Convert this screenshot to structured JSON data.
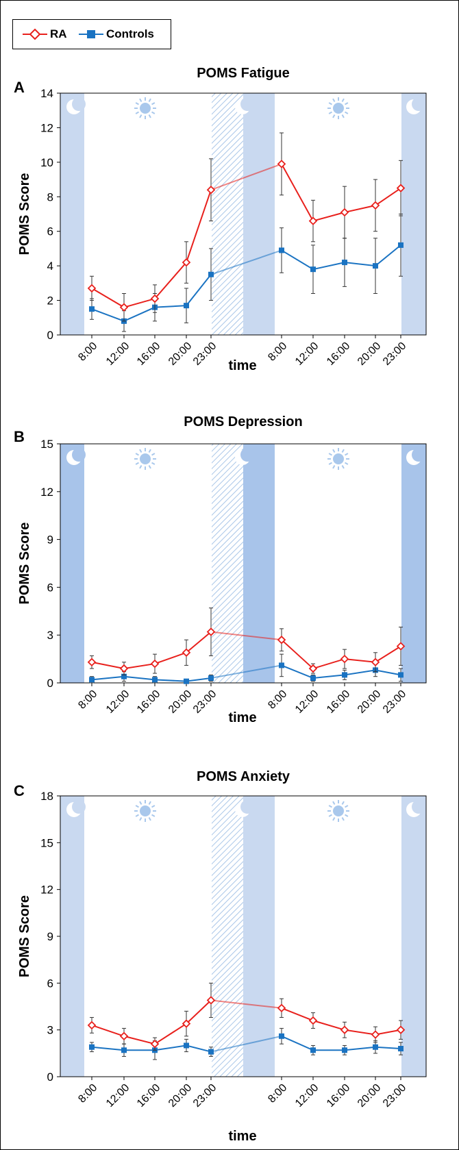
{
  "legend": {
    "ra_label": "RA",
    "controls_label": "Controls"
  },
  "colors": {
    "ra": "#e8201c",
    "controls": "#1a73c2",
    "night_band": "#c9d9f0",
    "night_band_dark": "#a8c4ea",
    "hatch": "#a9c6e8",
    "moon": "#ffffff",
    "sun": "#a9c8ec"
  },
  "chart_data": [
    {
      "panel_letter": "A",
      "type": "line",
      "title": "POMS Fatigue",
      "xlabel": "time",
      "ylabel": "POMS Score",
      "ylim": [
        0,
        14
      ],
      "yticks": [
        0,
        2,
        4,
        6,
        8,
        10,
        12,
        14
      ],
      "categories": [
        "8:00",
        "12:00",
        "16:00",
        "20:00",
        "23:00",
        "8:00",
        "12:00",
        "16:00",
        "20:00",
        "23:00"
      ],
      "legend_position": "top-left",
      "series": [
        {
          "name": "RA",
          "values": [
            2.7,
            1.6,
            2.1,
            4.2,
            8.4,
            9.9,
            6.6,
            7.1,
            7.5,
            8.5
          ],
          "error": [
            0.7,
            0.8,
            0.8,
            1.2,
            1.8,
            1.8,
            1.2,
            1.5,
            1.5,
            1.6
          ]
        },
        {
          "name": "Controls",
          "values": [
            1.5,
            0.8,
            1.6,
            1.7,
            3.5,
            4.9,
            3.8,
            4.2,
            4.0,
            5.2
          ],
          "error": [
            0.6,
            0.6,
            0.8,
            1.0,
            1.5,
            1.3,
            1.4,
            1.4,
            1.6,
            1.8
          ]
        }
      ]
    },
    {
      "panel_letter": "B",
      "type": "line",
      "title": "POMS Depression",
      "xlabel": "time",
      "ylabel": "POMS Score",
      "ylim": [
        0,
        15
      ],
      "yticks": [
        0,
        3,
        6,
        9,
        12,
        15
      ],
      "categories": [
        "8:00",
        "12:00",
        "16:00",
        "20:00",
        "23:00",
        "8:00",
        "12:00",
        "16:00",
        "20:00",
        "23:00"
      ],
      "series": [
        {
          "name": "RA",
          "values": [
            1.3,
            0.9,
            1.2,
            1.9,
            3.2,
            2.7,
            0.9,
            1.5,
            1.3,
            2.3
          ],
          "error": [
            0.4,
            0.4,
            0.6,
            0.8,
            1.5,
            0.7,
            0.3,
            0.6,
            0.6,
            1.2
          ]
        },
        {
          "name": "Controls",
          "values": [
            0.2,
            0.4,
            0.2,
            0.1,
            0.3,
            1.1,
            0.3,
            0.5,
            0.8,
            0.5
          ],
          "error": [
            0.2,
            0.3,
            0.2,
            0.1,
            0.2,
            0.7,
            0.2,
            0.3,
            0.4,
            0.4
          ]
        }
      ]
    },
    {
      "panel_letter": "C",
      "type": "line",
      "title": "POMS Anxiety",
      "xlabel": "time",
      "ylabel": "POMS Score",
      "ylim": [
        0,
        18
      ],
      "yticks": [
        0,
        3,
        6,
        9,
        12,
        15,
        18
      ],
      "categories": [
        "8:00",
        "12:00",
        "16:00",
        "20:00",
        "23:00",
        "8:00",
        "12:00",
        "16:00",
        "20:00",
        "23:00"
      ],
      "series": [
        {
          "name": "RA",
          "values": [
            3.3,
            2.6,
            2.1,
            3.4,
            4.9,
            4.4,
            3.6,
            3.0,
            2.7,
            3.0
          ],
          "error": [
            0.5,
            0.5,
            0.4,
            0.8,
            1.1,
            0.6,
            0.5,
            0.5,
            0.5,
            0.6
          ]
        },
        {
          "name": "Controls",
          "values": [
            1.9,
            1.7,
            1.7,
            2.0,
            1.6,
            2.6,
            1.7,
            1.7,
            1.9,
            1.8
          ],
          "error": [
            0.3,
            0.4,
            0.6,
            0.4,
            0.3,
            0.5,
            0.3,
            0.3,
            0.4,
            0.4
          ]
        }
      ]
    }
  ]
}
